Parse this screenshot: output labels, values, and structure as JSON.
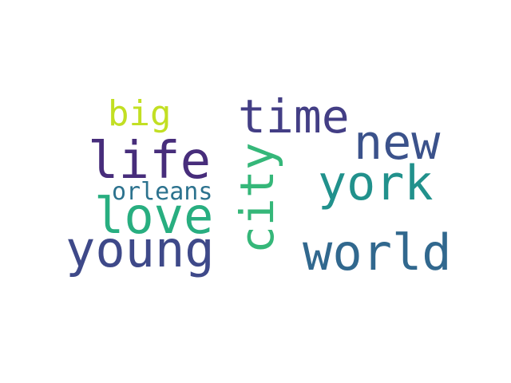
{
  "words": [
    {
      "id": "life",
      "text": "life",
      "color": "#472d7b"
    },
    {
      "id": "time",
      "text": "time",
      "color": "#433e85"
    },
    {
      "id": "new",
      "text": "new",
      "color": "#3b528b"
    },
    {
      "id": "york",
      "text": "york",
      "color": "#21918c"
    },
    {
      "id": "love",
      "text": "love",
      "color": "#28ae80"
    },
    {
      "id": "city",
      "text": "city",
      "color": "#35b779"
    },
    {
      "id": "young",
      "text": "young",
      "color": "#3e4989"
    },
    {
      "id": "world",
      "text": "world",
      "color": "#31688e"
    },
    {
      "id": "orleans",
      "text": "orleans",
      "color": "#2c728e"
    },
    {
      "id": "big",
      "text": "big",
      "color": "#c2df23"
    }
  ]
}
